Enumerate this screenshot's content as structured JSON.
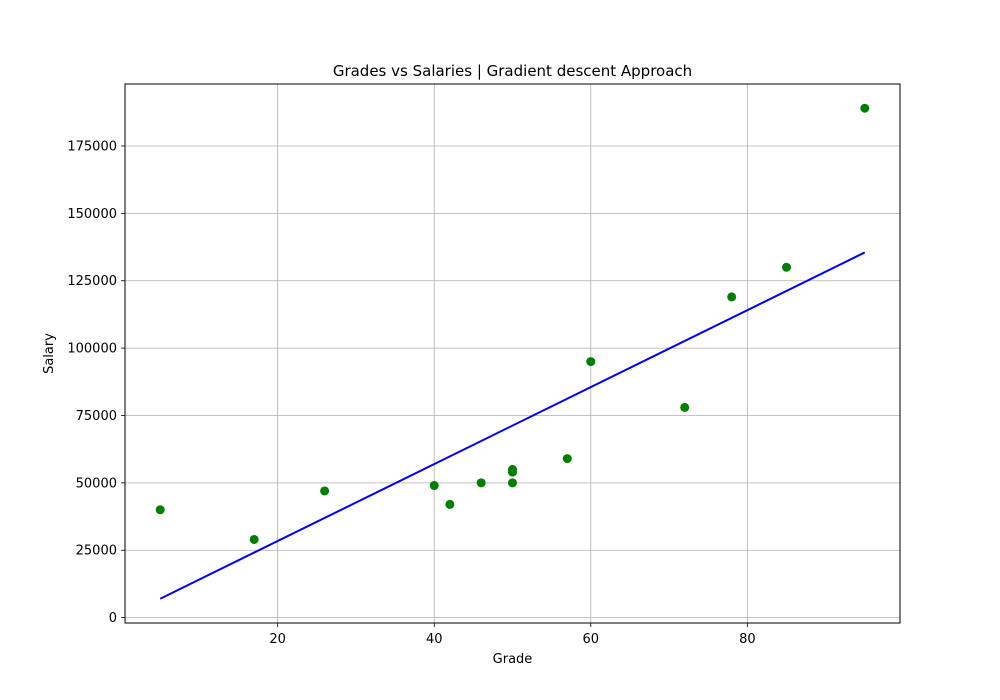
{
  "chart_data": {
    "type": "scatter",
    "title": "Grades vs Salaries | Gradient descent Approach",
    "xlabel": "Grade",
    "ylabel": "Salary",
    "xlim": [
      0.5,
      99.5
    ],
    "ylim": [
      -2000,
      198000
    ],
    "xticks": [
      20,
      40,
      60,
      80
    ],
    "yticks": [
      0,
      25000,
      50000,
      75000,
      100000,
      125000,
      150000,
      175000
    ],
    "grid": true,
    "series": [
      {
        "kind": "scatter",
        "color": "#008000",
        "points": [
          [
            5,
            40000
          ],
          [
            17,
            29000
          ],
          [
            26,
            47000
          ],
          [
            40,
            49000
          ],
          [
            42,
            42000
          ],
          [
            46,
            50000
          ],
          [
            50,
            55000
          ],
          [
            50,
            54000
          ],
          [
            50,
            50000
          ],
          [
            57,
            59000
          ],
          [
            60,
            95000
          ],
          [
            72,
            78000
          ],
          [
            78,
            119000
          ],
          [
            85,
            130000
          ],
          [
            95,
            189000
          ]
        ]
      },
      {
        "kind": "line",
        "color": "#0000ff",
        "points": [
          [
            5,
            7000
          ],
          [
            95,
            135500
          ]
        ]
      }
    ]
  }
}
